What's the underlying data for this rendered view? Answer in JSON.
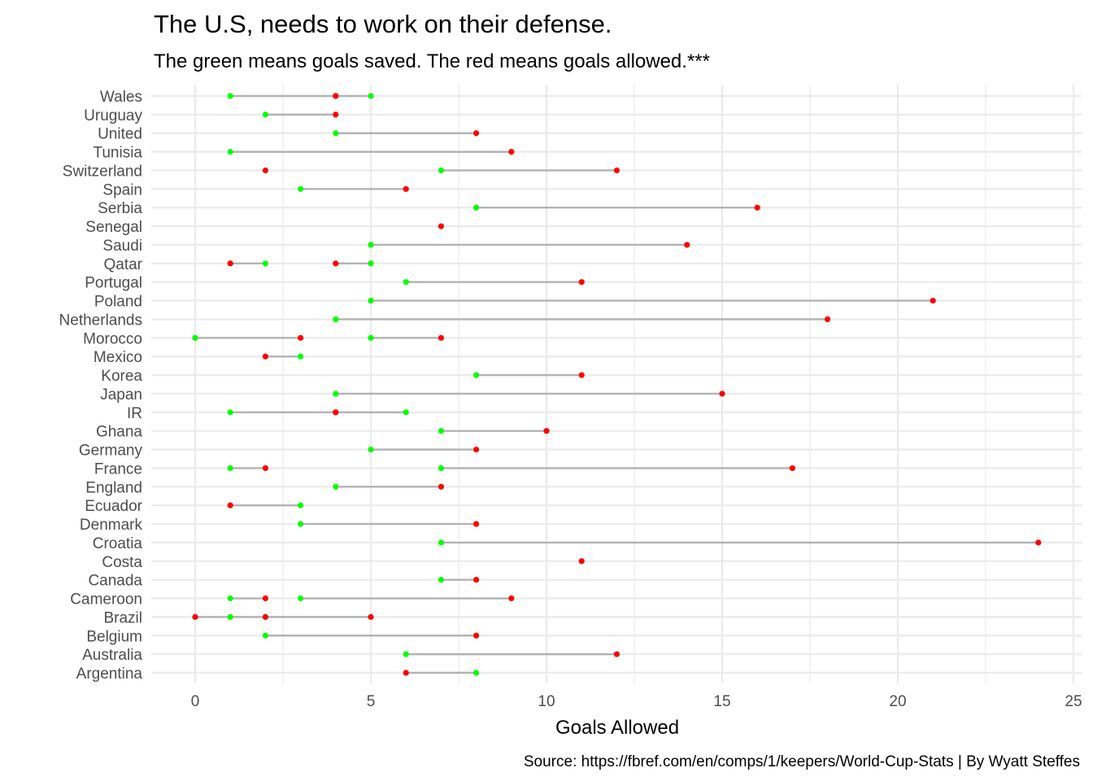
{
  "chart_data": {
    "type": "scatter",
    "title": "The U.S, needs to work on their defense.",
    "subtitle": "The green means goals saved. The red means goals allowed.***",
    "caption": "Source: https://fbref.com/en/comps/1/keepers/World-Cup-Stats | By Wyatt Steffes",
    "xlabel": "Goals Allowed",
    "ylabel": "",
    "xlim": [
      0,
      25
    ],
    "x_ticks": [
      "0",
      "5",
      "10",
      "15",
      "20",
      "25"
    ],
    "grid": true,
    "colors": {
      "saved": "#00ff00",
      "allowed": "#ff0000",
      "segment": "#b3b3b3",
      "grid": "#ebebeb"
    },
    "categories": [
      "Wales",
      "Uruguay",
      "United",
      "Tunisia",
      "Switzerland",
      "Spain",
      "Serbia",
      "Senegal",
      "Saudi",
      "Qatar",
      "Portugal",
      "Poland",
      "Netherlands",
      "Morocco",
      "Mexico",
      "Korea",
      "Japan",
      "IR",
      "Ghana",
      "Germany",
      "France",
      "England",
      "Ecuador",
      "Denmark",
      "Croatia",
      "Costa",
      "Canada",
      "Cameroon",
      "Brazil",
      "Belgium",
      "Australia",
      "Argentina"
    ],
    "series": [
      {
        "name": "goals saved",
        "color": "#00ff00"
      },
      {
        "name": "goals allowed",
        "color": "#ff0000"
      }
    ],
    "rows": [
      {
        "country": "Wales",
        "pairs": [
          [
            5,
            4
          ],
          [
            1,
            4
          ]
        ]
      },
      {
        "country": "Uruguay",
        "pairs": [
          [
            2,
            4
          ]
        ]
      },
      {
        "country": "United",
        "pairs": [
          [
            4,
            8
          ]
        ]
      },
      {
        "country": "Tunisia",
        "pairs": [
          [
            1,
            9
          ]
        ]
      },
      {
        "country": "Switzerland",
        "pairs": [
          [
            7,
            12
          ],
          [
            null,
            2
          ]
        ]
      },
      {
        "country": "Spain",
        "pairs": [
          [
            3,
            6
          ]
        ]
      },
      {
        "country": "Serbia",
        "pairs": [
          [
            8,
            16
          ]
        ]
      },
      {
        "country": "Senegal",
        "pairs": [
          [
            null,
            7
          ]
        ]
      },
      {
        "country": "Saudi",
        "pairs": [
          [
            5,
            14
          ]
        ]
      },
      {
        "country": "Qatar",
        "pairs": [
          [
            2,
            1
          ],
          [
            5,
            4
          ]
        ]
      },
      {
        "country": "Portugal",
        "pairs": [
          [
            6,
            11
          ]
        ]
      },
      {
        "country": "Poland",
        "pairs": [
          [
            5,
            21
          ]
        ]
      },
      {
        "country": "Netherlands",
        "pairs": [
          [
            4,
            18
          ]
        ]
      },
      {
        "country": "Morocco",
        "pairs": [
          [
            0,
            3
          ],
          [
            5,
            7
          ]
        ]
      },
      {
        "country": "Mexico",
        "pairs": [
          [
            3,
            2
          ]
        ]
      },
      {
        "country": "Korea",
        "pairs": [
          [
            8,
            11
          ]
        ]
      },
      {
        "country": "Japan",
        "pairs": [
          [
            4,
            15
          ]
        ]
      },
      {
        "country": "IR",
        "pairs": [
          [
            6,
            4
          ],
          [
            1,
            4
          ]
        ]
      },
      {
        "country": "Ghana",
        "pairs": [
          [
            7,
            10
          ]
        ]
      },
      {
        "country": "Germany",
        "pairs": [
          [
            5,
            8
          ]
        ]
      },
      {
        "country": "France",
        "pairs": [
          [
            1,
            2
          ],
          [
            7,
            17
          ]
        ]
      },
      {
        "country": "England",
        "pairs": [
          [
            4,
            7
          ]
        ]
      },
      {
        "country": "Ecuador",
        "pairs": [
          [
            3,
            1
          ]
        ]
      },
      {
        "country": "Denmark",
        "pairs": [
          [
            3,
            8
          ]
        ]
      },
      {
        "country": "Croatia",
        "pairs": [
          [
            7,
            24
          ]
        ]
      },
      {
        "country": "Costa",
        "pairs": [
          [
            null,
            11
          ]
        ]
      },
      {
        "country": "Canada",
        "pairs": [
          [
            7,
            8
          ]
        ]
      },
      {
        "country": "Cameroon",
        "pairs": [
          [
            1,
            2
          ],
          [
            3,
            9
          ]
        ]
      },
      {
        "country": "Brazil",
        "pairs": [
          [
            1,
            0
          ],
          [
            1,
            2
          ],
          [
            2,
            5
          ]
        ]
      },
      {
        "country": "Belgium",
        "pairs": [
          [
            2,
            8
          ]
        ]
      },
      {
        "country": "Australia",
        "pairs": [
          [
            6,
            12
          ]
        ]
      },
      {
        "country": "Argentina",
        "pairs": [
          [
            8,
            6
          ]
        ]
      }
    ]
  }
}
